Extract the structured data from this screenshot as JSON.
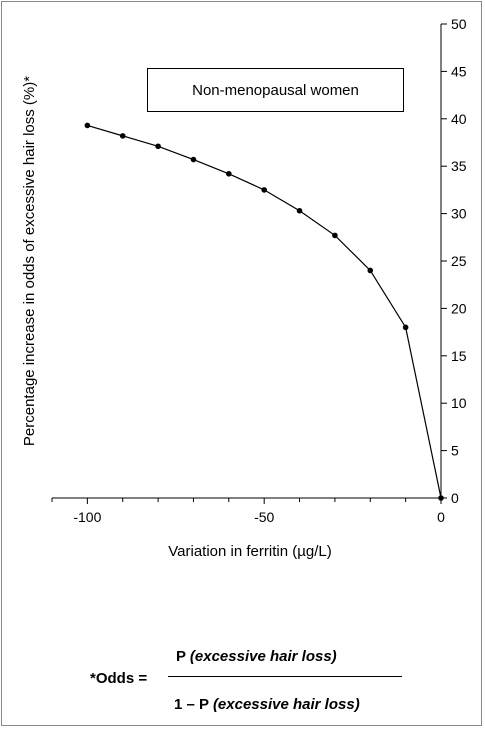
{
  "chart_data": {
    "type": "line",
    "title": "",
    "legend_box": "Non-menopausal women",
    "xlabel": "Variation in ferritin (µg/L)",
    "ylabel": "Percentage increase in odds of excessive hair loss (%)*",
    "xlim": [
      -110,
      0
    ],
    "ylim": [
      0,
      50
    ],
    "x_ticks": [
      -100,
      -50,
      0
    ],
    "y_ticks": [
      0,
      5,
      10,
      15,
      20,
      25,
      30,
      35,
      40,
      45,
      50
    ],
    "y_axis_side": "right",
    "grid": false,
    "series": [
      {
        "x": [
          -100,
          -90,
          -80,
          -70,
          -60,
          -50,
          -40,
          -30,
          -20,
          -10,
          0
        ],
        "y": [
          39.3,
          38.2,
          37.1,
          35.7,
          34.2,
          32.5,
          30.3,
          27.7,
          24.0,
          18.0,
          0
        ]
      }
    ]
  },
  "formula": {
    "lhs": "*Odds =",
    "numerator_prefix": "P",
    "numerator_italic": "(excessive hair loss)",
    "denominator_prefix": "1 – P",
    "denominator_italic": "(excessive hair loss)"
  }
}
